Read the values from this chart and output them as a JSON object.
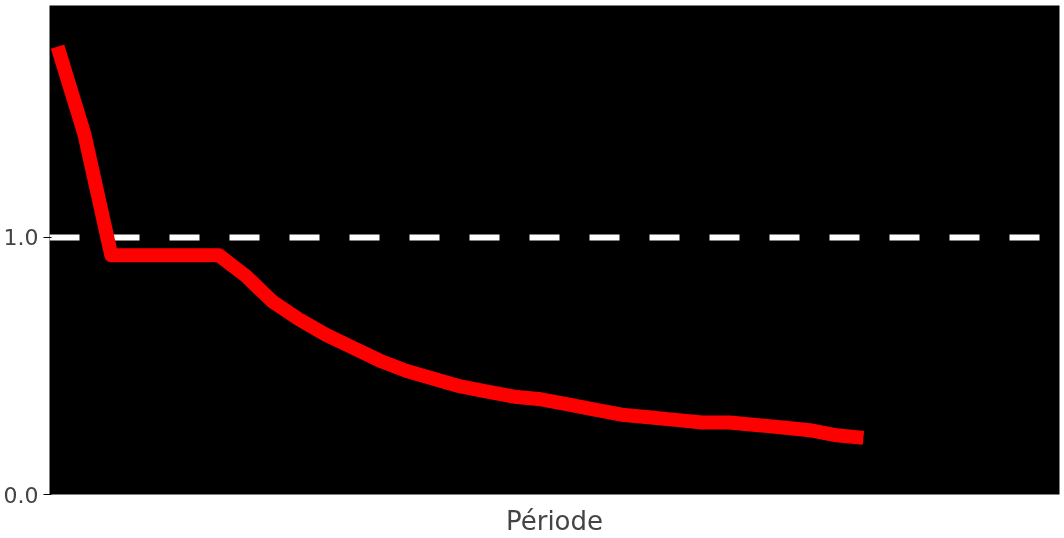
{
  "chart_data": {
    "type": "line",
    "xlabel": "Période",
    "categories": [
      null,
      null,
      null,
      null,
      null,
      null,
      null,
      null,
      null,
      null,
      null,
      null,
      null,
      null,
      null,
      null,
      null,
      null,
      null,
      null,
      null,
      null,
      null,
      null,
      null,
      null,
      null,
      null,
      null,
      null,
      null,
      null,
      null,
      null,
      null,
      null,
      null,
      null
    ],
    "series": [
      {
        "color": "#ff0000",
        "values": [
          1.74,
          1.4,
          0.93,
          0.93,
          0.93,
          0.93,
          0.93,
          0.85,
          0.75,
          0.68,
          0.62,
          0.57,
          0.52,
          0.48,
          0.45,
          0.42,
          0.4,
          0.38,
          0.37,
          0.35,
          0.33,
          0.31,
          0.3,
          0.29,
          0.28,
          0.28,
          0.27,
          0.26,
          0.25,
          0.23,
          0.22,
          null,
          null,
          null,
          null,
          null,
          null,
          null
        ]
      }
    ],
    "ylim": [
      0,
      1.9
    ],
    "yticks": [
      {
        "value": 0,
        "label": "0.0"
      },
      {
        "value": 1,
        "label": "1.0"
      }
    ],
    "grid": "y",
    "marker": "none",
    "line_style": "solid"
  }
}
